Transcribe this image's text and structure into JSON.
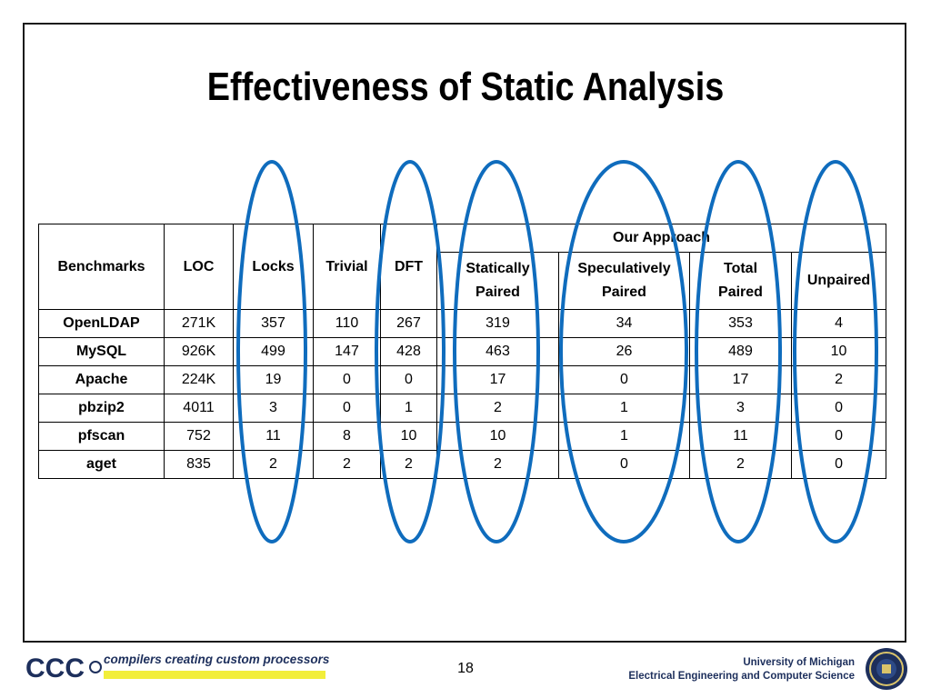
{
  "slide": {
    "title": "Effectiveness of Static Analysis",
    "page_number": "18"
  },
  "table": {
    "headers": {
      "benchmarks": "Benchmarks",
      "loc": "LOC",
      "locks": "Locks",
      "trivial": "Trivial",
      "dft": "DFT",
      "our_approach": "Our Approach",
      "statically_paired": [
        "Statically",
        "Paired"
      ],
      "speculatively_paired": [
        "Speculatively",
        "Paired"
      ],
      "total_paired": [
        "Total",
        "Paired"
      ],
      "unpaired": "Unpaired"
    },
    "rows": [
      [
        "OpenLDAP",
        "271K",
        "357",
        "110",
        "267",
        "319",
        "34",
        "353",
        "4"
      ],
      [
        "MySQL",
        "926K",
        "499",
        "147",
        "428",
        "463",
        "26",
        "489",
        "10"
      ],
      [
        "Apache",
        "224K",
        "19",
        "0",
        "0",
        "17",
        "0",
        "17",
        "2"
      ],
      [
        "pbzip2",
        "4011",
        "3",
        "0",
        "1",
        "2",
        "1",
        "3",
        "0"
      ],
      [
        "pfscan",
        "752",
        "11",
        "8",
        "10",
        "10",
        "1",
        "11",
        "0"
      ],
      [
        "aget",
        "835",
        "2",
        "2",
        "2",
        "2",
        "0",
        "2",
        "0"
      ]
    ]
  },
  "highlight": {
    "color": "#0f6cbd"
  },
  "footer": {
    "logo_text": "CCC",
    "tagline": "compilers creating custom processors",
    "university": "University of Michigan",
    "department": "Electrical Engineering and Computer Science",
    "tagline_bar_color": "#f2ee3a"
  }
}
